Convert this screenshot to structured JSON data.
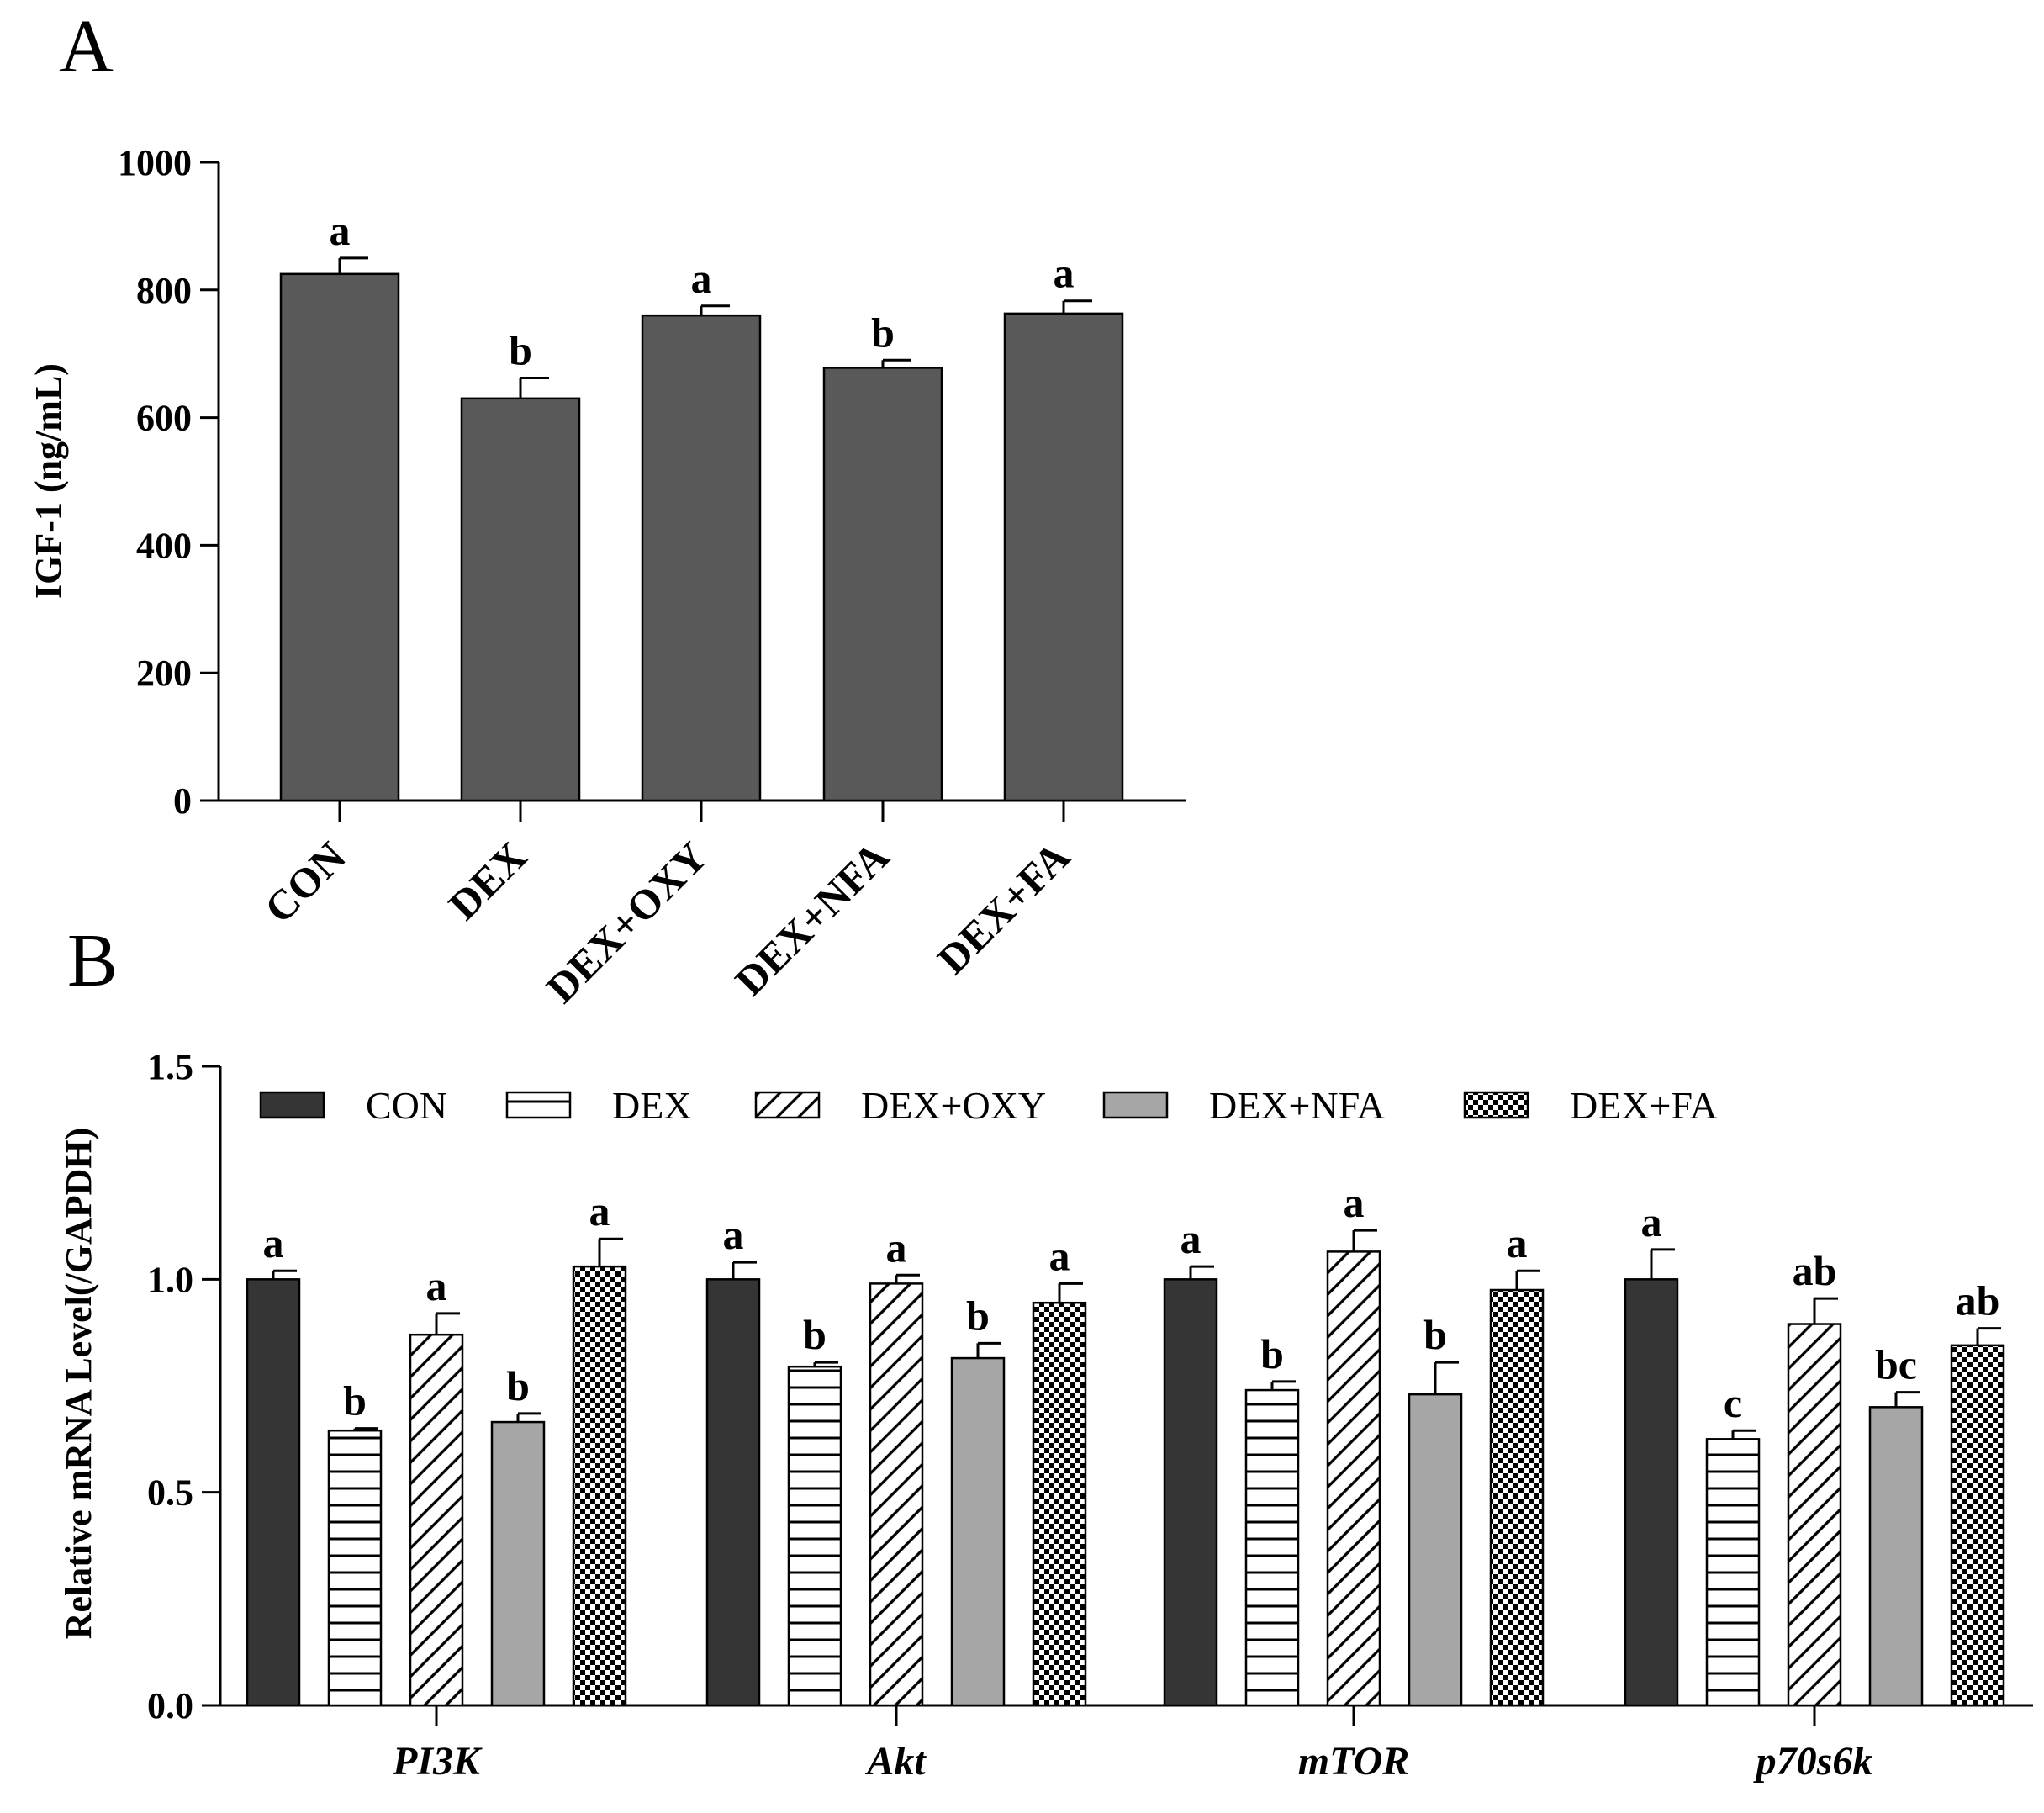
{
  "chart_data": [
    {
      "panel": "A",
      "type": "bar",
      "title": "",
      "xlabel": "",
      "ylabel": "IGF-1 (ng/mL)",
      "ylim": [
        0,
        1000
      ],
      "yticks": [
        0,
        200,
        400,
        600,
        800,
        1000
      ],
      "categories": [
        "CON",
        "DEX",
        "DEX+OXY",
        "DEX+NFA",
        "DEX+FA"
      ],
      "values": [
        825,
        630,
        760,
        678,
        763
      ],
      "errors": [
        25,
        32,
        15,
        12,
        20
      ],
      "significance": [
        "a",
        "b",
        "a",
        "b",
        "a"
      ],
      "bar_color": "#595959"
    },
    {
      "panel": "B",
      "type": "bar",
      "title": "",
      "xlabel": "",
      "ylabel": "Relative mRNA Level(/GAPDH)",
      "ylim": [
        0,
        1.5
      ],
      "yticks": [
        0.0,
        0.5,
        1.0,
        1.5
      ],
      "ytick_labels": [
        "0.0",
        "0.5",
        "1.0",
        "1.5"
      ],
      "categories": [
        "PI3K",
        "Akt",
        "mTOR",
        "p70s6k"
      ],
      "legend_position": "top",
      "series": [
        {
          "name": "CON",
          "pattern": "solid-dark",
          "values": [
            1.0,
            1.0,
            1.0,
            1.0
          ],
          "errors": [
            0.02,
            0.04,
            0.03,
            0.07
          ],
          "significance": [
            "a",
            "a",
            "a",
            "a"
          ]
        },
        {
          "name": "DEX",
          "pattern": "horizontal",
          "values": [
            0.645,
            0.795,
            0.74,
            0.625
          ],
          "errors": [
            0.005,
            0.01,
            0.02,
            0.02
          ],
          "significance": [
            "b",
            "b",
            "b",
            "c"
          ]
        },
        {
          "name": "DEX+OXY",
          "pattern": "diagonal",
          "values": [
            0.87,
            0.99,
            1.065,
            0.895
          ],
          "errors": [
            0.05,
            0.02,
            0.05,
            0.06
          ],
          "significance": [
            "a",
            "a",
            "a",
            "ab"
          ]
        },
        {
          "name": "DEX+NFA",
          "pattern": "solid-gray",
          "values": [
            0.665,
            0.815,
            0.73,
            0.7
          ],
          "errors": [
            0.02,
            0.035,
            0.075,
            0.035
          ],
          "significance": [
            "b",
            "b",
            "b",
            "bc"
          ]
        },
        {
          "name": "DEX+FA",
          "pattern": "checker",
          "values": [
            1.03,
            0.945,
            0.975,
            0.845
          ],
          "errors": [
            0.065,
            0.045,
            0.045,
            0.04
          ],
          "significance": [
            "a",
            "a",
            "a",
            "ab"
          ]
        }
      ]
    }
  ],
  "panel_labels": {
    "a": "A",
    "b": "B"
  },
  "colors": {
    "bar_a": "#595959",
    "dark": "#353535",
    "gray": "#a6a6a6",
    "stroke": "#000000"
  }
}
